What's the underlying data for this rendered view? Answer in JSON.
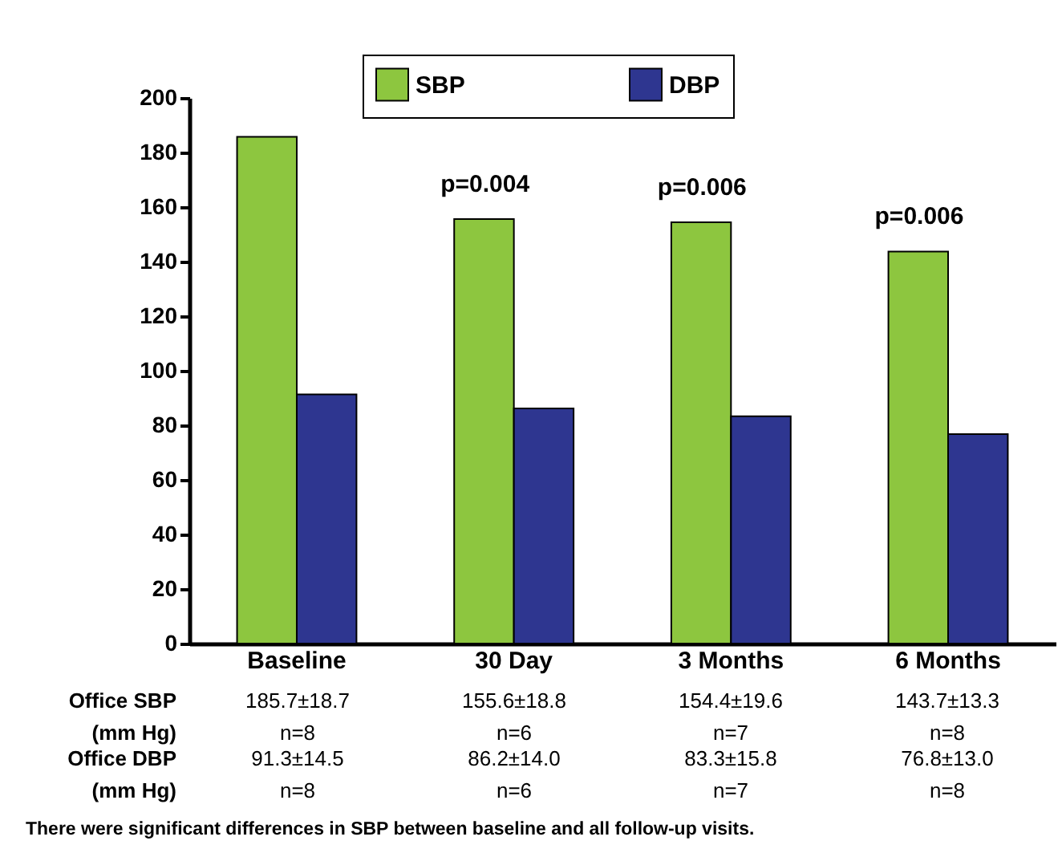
{
  "chart_data": {
    "type": "bar",
    "categories": [
      "Baseline",
      "30 Day",
      "3 Months",
      "6 Months"
    ],
    "series": [
      {
        "name": "SBP",
        "color": "#8dc63f",
        "values": [
          185.7,
          155.6,
          154.4,
          143.7
        ],
        "value_labels": [
          "185.7±18.7\nn=8",
          "155.6±18.8\nn=6",
          "154.4±19.6\nn=7",
          "143.7±13.3\nn=8"
        ]
      },
      {
        "name": "DBP",
        "color": "#2e3690",
        "values": [
          91.3,
          86.2,
          83.3,
          76.8
        ],
        "value_labels": [
          "91.3±14.5\nn=8",
          "86.2±14.0\nn=6",
          "83.3±15.8\nn=7",
          "76.8±13.0\nn=8"
        ]
      }
    ],
    "ylim": [
      0,
      200
    ],
    "yticks": [
      0,
      20,
      40,
      60,
      80,
      100,
      120,
      140,
      160,
      180,
      200
    ],
    "grid": false,
    "legend": "top",
    "annotations": [
      "Office SBP\n(mm Hg)",
      "Office DBP\n(mm Hg)",
      "There were significant differences in SBP between baseline and all follow-up visits.",
      {
        "text": "p=0.004",
        "x": "30 Day",
        "y": 155.6
      },
      {
        "text": "p=0.006",
        "x": "3 Months",
        "y": 154.4
      },
      {
        "text": "p=0.006",
        "x": "6 Months",
        "y": 143.7
      }
    ]
  }
}
